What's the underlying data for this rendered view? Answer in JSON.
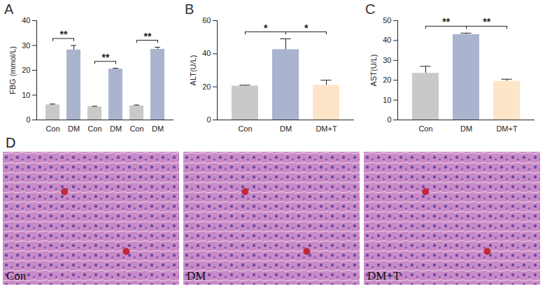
{
  "chart_data": [
    {
      "type": "bar",
      "panel_label": "A",
      "ylabel": "FBG (mmol/L)",
      "categories": [
        "Con",
        "DM",
        "Con",
        "DM",
        "Con",
        "DM"
      ],
      "values": [
        6.1,
        28.2,
        5.3,
        20.5,
        5.7,
        28.5
      ],
      "errors": [
        0.3,
        1.8,
        0.2,
        0.3,
        0.3,
        0.8
      ],
      "colors": [
        "#c9c9c9",
        "#aab4cf",
        "#c9c9c9",
        "#aab4cf",
        "#c9c9c9",
        "#aab4cf"
      ],
      "ylim": [
        0,
        40
      ],
      "yticks": [
        0,
        10,
        20,
        30,
        40
      ],
      "grid": false,
      "comparisons": [
        {
          "from": 0,
          "to": 1,
          "label": "**"
        },
        {
          "from": 2,
          "to": 3,
          "label": "**"
        },
        {
          "from": 4,
          "to": 5,
          "label": "**"
        }
      ]
    },
    {
      "type": "bar",
      "panel_label": "B",
      "ylabel": "ALT(U/L)",
      "categories": [
        "Con",
        "DM",
        "DM+T"
      ],
      "values": [
        20.5,
        42.5,
        21
      ],
      "errors": [
        0.5,
        6.5,
        3
      ],
      "colors": [
        "#c9c9c9",
        "#aab4cf",
        "#fde5c7"
      ],
      "ylim": [
        0,
        60
      ],
      "yticks": [
        0,
        20,
        40,
        60
      ],
      "grid": false,
      "comparisons": [
        {
          "from": 0,
          "to": 1,
          "label": "*"
        },
        {
          "from": 1,
          "to": 2,
          "label": "*"
        }
      ]
    },
    {
      "type": "bar",
      "panel_label": "C",
      "ylabel": "AST(U/L)",
      "categories": [
        "Con",
        "DM",
        "DM+T"
      ],
      "values": [
        23.5,
        43,
        19.5
      ],
      "errors": [
        3.5,
        0.7,
        1
      ],
      "colors": [
        "#c9c9c9",
        "#aab4cf",
        "#fde5c7"
      ],
      "ylim": [
        0,
        50
      ],
      "yticks": [
        0,
        10,
        20,
        30,
        40,
        50
      ],
      "grid": false,
      "comparisons": [
        {
          "from": 0,
          "to": 1,
          "label": "**"
        },
        {
          "from": 1,
          "to": 2,
          "label": "**"
        }
      ]
    }
  ],
  "image_panel": {
    "panel_label": "D",
    "images": [
      {
        "label": "Con"
      },
      {
        "label": "DM"
      },
      {
        "label": "DM+T"
      }
    ]
  }
}
